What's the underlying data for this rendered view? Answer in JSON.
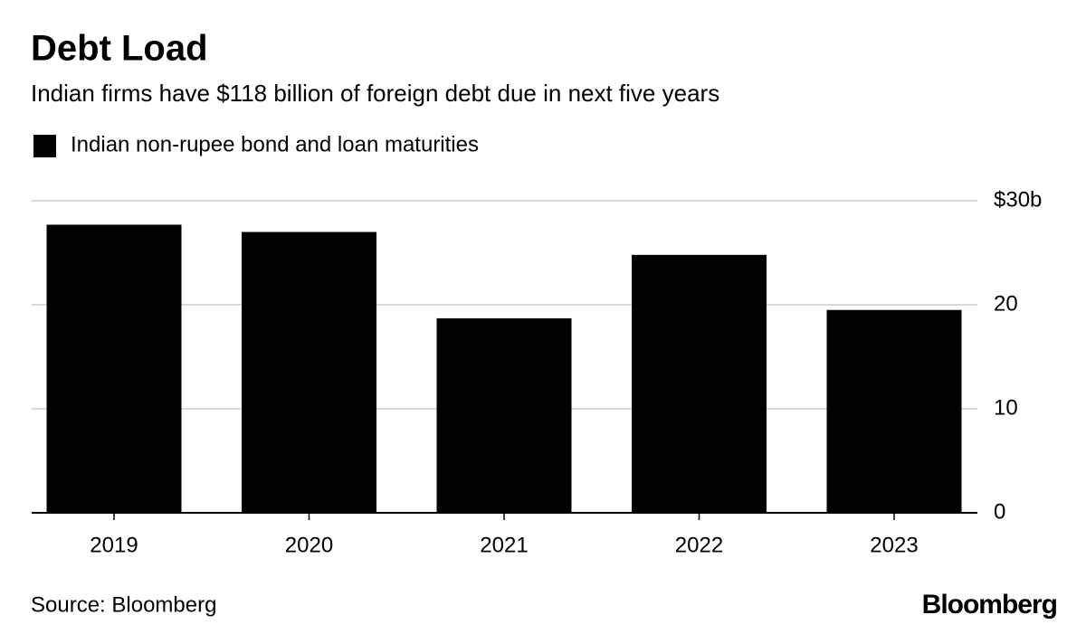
{
  "chart_data": {
    "type": "bar",
    "title": "Debt Load",
    "subtitle": "Indian firms have $118 billion of foreign debt due in next five years",
    "categories": [
      "2019",
      "2020",
      "2021",
      "2022",
      "2023"
    ],
    "series": [
      {
        "name": "Indian non-rupee bond and loan maturities",
        "color": "#000000",
        "values": [
          27.7,
          27.0,
          18.7,
          24.8,
          19.5
        ]
      }
    ],
    "ylim": [
      0,
      30
    ],
    "yticks": [
      0,
      10,
      20,
      {
        "value": 30,
        "label": "$30b"
      }
    ],
    "grid": true,
    "legend": "top-left",
    "source": "Source: Bloomberg",
    "credit": "Bloomberg"
  }
}
